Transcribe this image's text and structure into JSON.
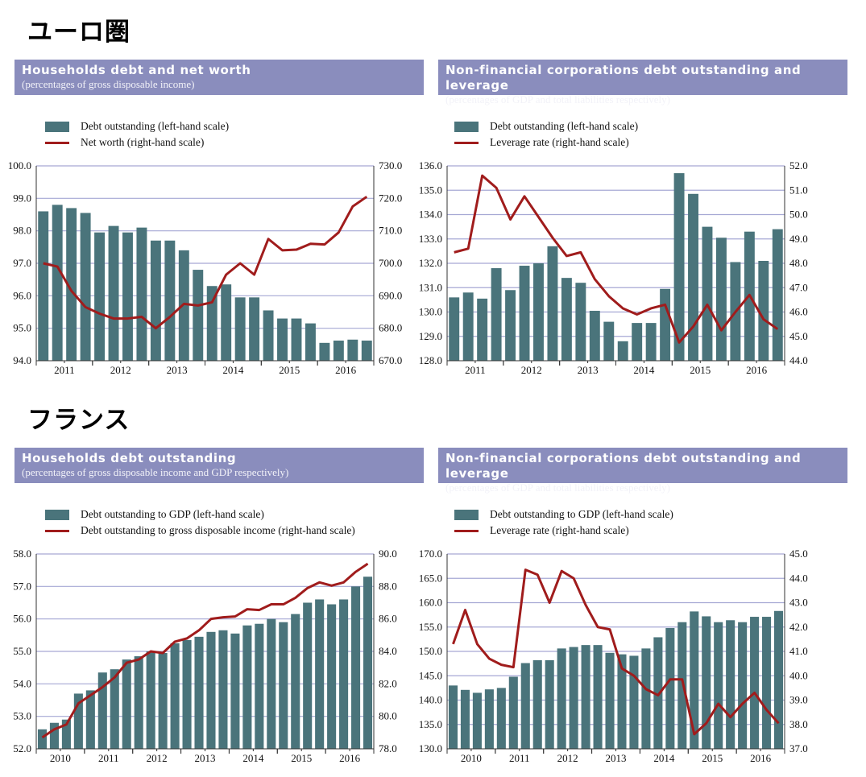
{
  "regions": [
    "ユーロ圏",
    "フランス"
  ],
  "colors": {
    "bar": "#4a747b",
    "line": "#a01c1c",
    "grid": "#a6a8d4",
    "header": "#8a8dbd"
  },
  "chart_data": [
    {
      "type": "bar+line",
      "title": "Households debt and net worth",
      "subtitle": "(percentages of gross disposable income)",
      "legend": [
        "Debt outstanding (left-hand scale)",
        "Net worth (right-hand scale)"
      ],
      "years": [
        "2011",
        "2012",
        "2013",
        "2014",
        "2015",
        "2016"
      ],
      "left_ticks": [
        "94.0",
        "95.0",
        "96.0",
        "97.0",
        "98.0",
        "99.0",
        "100.0"
      ],
      "right_ticks": [
        "670.0",
        "680.0",
        "690.0",
        "700.0",
        "710.0",
        "720.0",
        "730.0"
      ],
      "ylim_left": [
        94,
        100
      ],
      "ylim_right": [
        670,
        730
      ],
      "bars": [
        98.6,
        98.8,
        98.7,
        98.55,
        97.95,
        98.15,
        97.95,
        98.1,
        97.7,
        97.7,
        97.4,
        96.8,
        96.3,
        96.35,
        95.95,
        95.95,
        95.55,
        95.3,
        95.3,
        95.15,
        94.55,
        94.62,
        94.65,
        94.62
      ],
      "line": [
        700,
        699,
        691.5,
        686.5,
        684.5,
        683,
        683,
        683.5,
        680,
        683.5,
        687.5,
        687,
        688,
        696.5,
        700,
        696.5,
        707.5,
        704,
        704.2,
        706,
        705.8,
        709.5,
        717.5,
        720.5
      ]
    },
    {
      "type": "bar+line",
      "title": "Non-financial corporations debt outstanding and leverage",
      "subtitle": "(percentages of GDP and total liabilities respectively)",
      "legend": [
        "Debt outstanding (left-hand scale)",
        "Leverage rate (right-hand scale)"
      ],
      "years": [
        "2011",
        "2012",
        "2013",
        "2014",
        "2015",
        "2016"
      ],
      "left_ticks": [
        "128.0",
        "129.0",
        "130.0",
        "131.0",
        "132.0",
        "133.0",
        "134.0",
        "135.0",
        "136.0"
      ],
      "right_ticks": [
        "44.0",
        "45.0",
        "46.0",
        "47.0",
        "48.0",
        "49.0",
        "50.0",
        "51.0",
        "52.0"
      ],
      "ylim_left": [
        128,
        136
      ],
      "ylim_right": [
        44,
        52
      ],
      "bars": [
        130.6,
        130.8,
        130.55,
        131.8,
        130.9,
        131.9,
        132.0,
        132.7,
        131.4,
        131.2,
        130.05,
        129.6,
        128.8,
        129.55,
        129.55,
        130.95,
        135.7,
        134.85,
        133.5,
        133.05,
        132.05,
        133.3,
        132.1,
        133.4
      ],
      "line": [
        48.45,
        48.6,
        51.6,
        51.1,
        49.8,
        50.75,
        49.9,
        49.05,
        48.3,
        48.45,
        47.35,
        46.65,
        46.15,
        45.9,
        46.15,
        46.3,
        44.75,
        45.4,
        46.3,
        45.25,
        46.0,
        46.7,
        45.7,
        45.3
      ]
    },
    {
      "type": "bar+line",
      "title": "Households debt outstanding",
      "subtitle": "(percentages of gross disposable income and GDP respectively)",
      "legend": [
        "Debt outstanding to GDP (left-hand scale)",
        "Debt outstanding to gross disposable income (right-hand scale)"
      ],
      "years": [
        "2010",
        "2011",
        "2012",
        "2013",
        "2014",
        "2015",
        "2016"
      ],
      "left_ticks": [
        "52.0",
        "53.0",
        "54.0",
        "55.0",
        "56.0",
        "57.0",
        "58.0"
      ],
      "right_ticks": [
        "78.0",
        "80.0",
        "82.0",
        "84.0",
        "86.0",
        "88.0",
        "90.0"
      ],
      "ylim_left": [
        52,
        58
      ],
      "ylim_right": [
        78,
        90
      ],
      "bars": [
        52.6,
        52.8,
        52.9,
        53.7,
        53.8,
        54.35,
        54.45,
        54.75,
        54.85,
        55.0,
        54.95,
        55.25,
        55.35,
        55.45,
        55.6,
        55.65,
        55.55,
        55.8,
        55.85,
        56.0,
        55.9,
        56.15,
        56.5,
        56.6,
        56.45,
        56.6,
        57.0,
        57.3
      ],
      "line": [
        78.7,
        79.2,
        79.5,
        80.8,
        81.3,
        81.8,
        82.4,
        83.3,
        83.5,
        84.0,
        83.9,
        84.6,
        84.8,
        85.3,
        86.0,
        86.1,
        86.15,
        86.6,
        86.55,
        86.9,
        86.9,
        87.3,
        87.9,
        88.25,
        88.05,
        88.25,
        88.9,
        89.4
      ]
    },
    {
      "type": "bar+line",
      "title": "Non-financial corporations debt outstanding and leverage",
      "subtitle": "(percentages of GDP and total liabilities respectively)",
      "legend": [
        "Debt outstanding to GDP (left-hand scale)",
        "Leverage rate (right-hand scale)"
      ],
      "years": [
        "2010",
        "2011",
        "2012",
        "2013",
        "2014",
        "2015",
        "2016"
      ],
      "left_ticks": [
        "130.0",
        "135.0",
        "140.0",
        "145.0",
        "150.0",
        "155.0",
        "160.0",
        "165.0",
        "170.0"
      ],
      "right_ticks": [
        "37.0",
        "38.0",
        "39.0",
        "40.0",
        "41.0",
        "42.0",
        "43.0",
        "44.0",
        "45.0"
      ],
      "ylim_left": [
        130,
        170
      ],
      "ylim_right": [
        37,
        45
      ],
      "bars": [
        143.0,
        142.1,
        141.5,
        142.2,
        142.5,
        144.8,
        147.6,
        148.2,
        148.2,
        150.6,
        150.9,
        151.3,
        151.3,
        149.7,
        149.4,
        149.1,
        150.6,
        152.9,
        154.8,
        156.0,
        158.2,
        157.2,
        156.0,
        156.4,
        156.0,
        157.1,
        157.1,
        158.3
      ],
      "line": [
        41.3,
        42.7,
        41.3,
        40.7,
        40.45,
        40.35,
        44.35,
        44.15,
        43.0,
        44.3,
        44.0,
        42.9,
        42.0,
        41.9,
        40.3,
        40.0,
        39.45,
        39.2,
        39.85,
        39.85,
        37.6,
        38.05,
        38.85,
        38.3,
        38.85,
        39.3,
        38.6,
        38.05
      ]
    }
  ]
}
